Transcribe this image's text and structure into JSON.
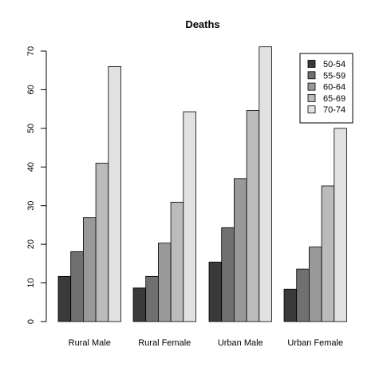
{
  "chart_data": {
    "type": "bar",
    "title": "Deaths",
    "xlabel": "",
    "ylabel": "",
    "categories": [
      "Rural Male",
      "Rural Female",
      "Urban Male",
      "Urban Female"
    ],
    "series": [
      {
        "name": "50-54",
        "values": [
          11.7,
          8.7,
          15.4,
          8.4
        ],
        "color": "#3a3a3a"
      },
      {
        "name": "55-59",
        "values": [
          18.1,
          11.7,
          24.3,
          13.6
        ],
        "color": "#707070"
      },
      {
        "name": "60-64",
        "values": [
          26.9,
          20.3,
          37.0,
          19.3
        ],
        "color": "#999999"
      },
      {
        "name": "65-69",
        "values": [
          41.0,
          30.9,
          54.6,
          35.1
        ],
        "color": "#bbbbbb"
      },
      {
        "name": "70-74",
        "values": [
          66.0,
          54.3,
          71.1,
          50.0
        ],
        "color": "#e1e1e1"
      }
    ],
    "ylim": [
      0,
      70
    ],
    "yticks": [
      "0",
      "10",
      "20",
      "30",
      "40",
      "50",
      "60",
      "70"
    ],
    "grid": false,
    "legend_position": "top-right"
  }
}
